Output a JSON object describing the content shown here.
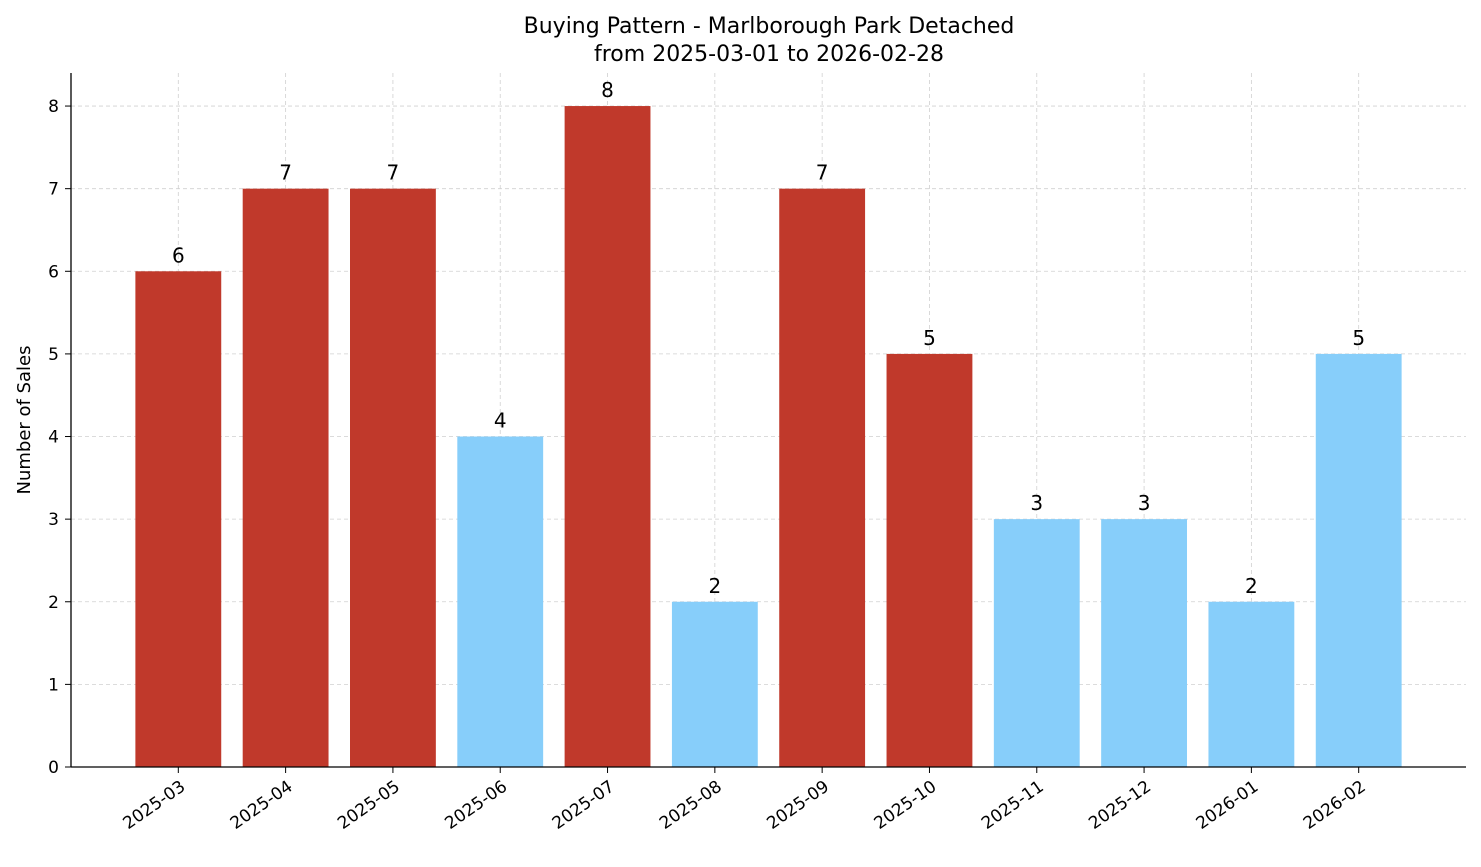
{
  "chart_data": {
    "type": "bar",
    "title": "Buying Pattern - Marlborough Park Detached",
    "subtitle": "from 2025-03-01 to 2026-02-28",
    "xlabel": "",
    "ylabel": "Number of Sales",
    "categories": [
      "2025-03",
      "2025-04",
      "2025-05",
      "2025-06",
      "2025-07",
      "2025-08",
      "2025-09",
      "2025-10",
      "2025-11",
      "2025-12",
      "2026-01",
      "2026-02"
    ],
    "values": [
      6,
      7,
      7,
      4,
      8,
      2,
      7,
      5,
      3,
      3,
      2,
      5
    ],
    "bar_colors": [
      "#c0392b",
      "#c0392b",
      "#c0392b",
      "#87cefa",
      "#c0392b",
      "#87cefa",
      "#c0392b",
      "#c0392b",
      "#87cefa",
      "#87cefa",
      "#87cefa",
      "#87cefa"
    ],
    "ylim": [
      0,
      8.4
    ],
    "yticks": [
      0,
      1,
      2,
      3,
      4,
      5,
      6,
      7,
      8
    ],
    "grid": true,
    "data_labels": true
  }
}
